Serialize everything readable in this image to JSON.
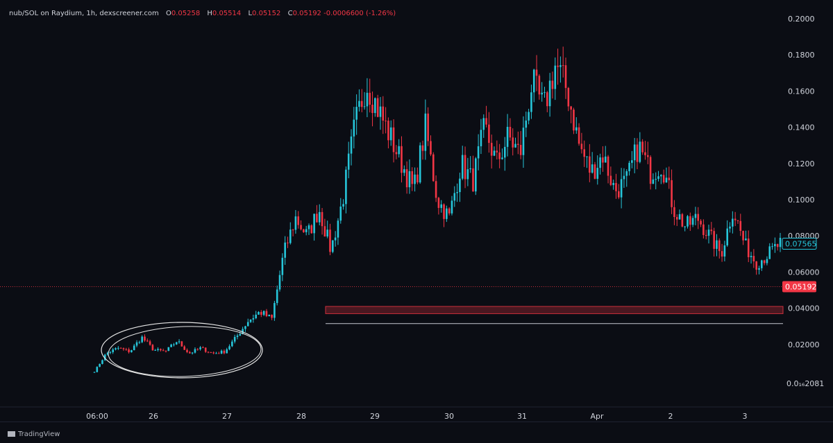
{
  "header": {
    "symbol": "nub/SOL on Raydium, 1h, dexscreener.com",
    "o_label": "O",
    "o_value": "0.05258",
    "h_label": "H",
    "h_value": "0.05514",
    "l_label": "L",
    "l_value": "0.05152",
    "c_label": "C",
    "c_value": "0.05192 -0.0006600 (-1.26%)"
  },
  "footer": {
    "logo_text": "TradingView"
  },
  "colors": {
    "up": "#26c6da",
    "down": "#f23645",
    "bg": "#0b0d14",
    "axis_text": "#d1d4dc"
  },
  "chart_data": {
    "type": "candlestick",
    "y_axis": {
      "ticks": [
        0.2,
        0.18,
        0.16,
        0.14,
        0.12,
        0.1,
        0.08,
        0.06,
        0.04,
        0.02
      ],
      "tick_labels": [
        "0.2000",
        "0.1800",
        "0.1600",
        "0.1400",
        "0.1200",
        "0.1000",
        "0.08000",
        "0.06000",
        "0.04000",
        "0.02000"
      ],
      "bottom_label": "0.0₁₆2081",
      "range": [
        0.0,
        0.2
      ]
    },
    "x_axis": {
      "labels": [
        "06:00",
        "26",
        "27",
        "28",
        "29",
        "30",
        "31",
        "Apr",
        "2",
        "3"
      ]
    },
    "price_labels": {
      "current": "0.07565",
      "last_close": "0.05192"
    },
    "zones": [
      {
        "type": "resistance-box",
        "from": 0.037,
        "to": 0.041
      },
      {
        "type": "support-line",
        "at": 0.0315
      }
    ],
    "segments": [
      {
        "value": 0.005
      },
      {
        "value": 0.015
      },
      {
        "value": 0.018
      },
      {
        "value": 0.016
      },
      {
        "value": 0.024
      },
      {
        "value": 0.017
      },
      {
        "value": 0.016
      },
      {
        "value": 0.022
      },
      {
        "value": 0.015
      },
      {
        "value": 0.018
      },
      {
        "value": 0.015
      },
      {
        "value": 0.016
      },
      {
        "value": 0.024
      },
      {
        "value": 0.033
      },
      {
        "value": 0.038
      },
      {
        "value": 0.034
      },
      {
        "value": 0.07
      },
      {
        "value": 0.09
      },
      {
        "value": 0.08
      },
      {
        "value": 0.095
      },
      {
        "value": 0.072
      },
      {
        "value": 0.1
      },
      {
        "value": 0.14
      },
      {
        "value": 0.165
      },
      {
        "value": 0.15
      },
      {
        "value": 0.135
      },
      {
        "value": 0.12
      },
      {
        "value": 0.105
      },
      {
        "value": 0.14
      },
      {
        "value": 0.1
      },
      {
        "value": 0.09
      },
      {
        "value": 0.12
      },
      {
        "value": 0.11
      },
      {
        "value": 0.14
      },
      {
        "value": 0.12
      },
      {
        "value": 0.135
      },
      {
        "value": 0.125
      },
      {
        "value": 0.165
      },
      {
        "value": 0.15
      },
      {
        "value": 0.175
      },
      {
        "value": 0.16
      },
      {
        "value": 0.13
      },
      {
        "value": 0.115
      },
      {
        "value": 0.125
      },
      {
        "value": 0.105
      },
      {
        "value": 0.11
      },
      {
        "value": 0.13
      },
      {
        "value": 0.115
      },
      {
        "value": 0.12
      },
      {
        "value": 0.095
      },
      {
        "value": 0.085
      },
      {
        "value": 0.09
      },
      {
        "value": 0.08
      },
      {
        "value": 0.07
      },
      {
        "value": 0.095
      },
      {
        "value": 0.075
      },
      {
        "value": 0.065
      },
      {
        "value": 0.07
      },
      {
        "value": 0.0757
      }
    ]
  }
}
